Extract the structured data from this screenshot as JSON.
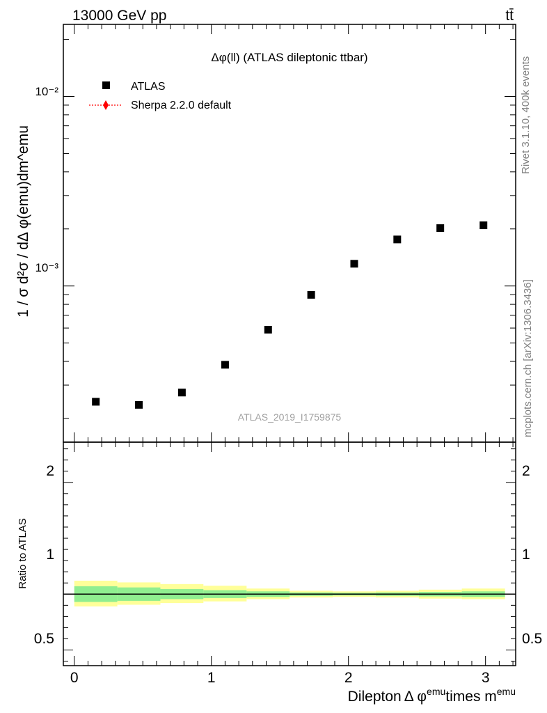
{
  "header": {
    "left": "13000 GeV pp",
    "right": "tt̄"
  },
  "side_labels": {
    "rivet": "Rivet 3.1.10,  400k events",
    "mcplots": "mcplots.cern.ch [arXiv:1306.3436]"
  },
  "chart_data": [
    {
      "type": "scatter",
      "title": "Δφ(ll) (ATLAS dileptonic ttbar)",
      "ylabel": "1 / σ  d²σ / dΔ φ(emu)dm^emu",
      "yscale": "log",
      "ylim": [
        0.00015,
        0.024
      ],
      "xlim": [
        -0.08,
        3.22
      ],
      "y_ticks": [
        "10⁻³",
        "10⁻²"
      ],
      "watermark": "ATLAS_2019_I1759875",
      "legend_position": "top-left",
      "series": [
        {
          "name": "ATLAS",
          "marker": "square",
          "color": "#000000",
          "x": [
            0.157,
            0.471,
            0.785,
            1.1,
            1.414,
            1.728,
            2.042,
            2.356,
            2.67,
            2.985
          ],
          "values": [
            0.000245,
            0.000236,
            0.000274,
            0.000384,
            0.000588,
            0.000898,
            0.00131,
            0.00176,
            0.00202,
            0.00209
          ],
          "legend": "ATLAS"
        },
        {
          "name": "Sherpa 2.2.0 default",
          "marker": "diamond",
          "line": "dotted",
          "color": "#ff0000",
          "legend": "Sherpa 2.2.0 default",
          "x": [],
          "values": []
        }
      ]
    },
    {
      "type": "area",
      "ylabel": "Ratio to ATLAS",
      "xlabel_main": "Dilepton",
      "xlabel_phi": "Δ φ",
      "xlabel_emu": "emu",
      "xlabel_times": "times m",
      "ylim": [
        0.36,
        2.36
      ],
      "x_ticks": [
        "0",
        "1",
        "2",
        "3"
      ],
      "y_ticks_left": [
        "0.5",
        "1",
        "2"
      ],
      "y_ticks_right": [
        "0.5",
        "1",
        "2"
      ],
      "reference_line": 1,
      "bins": [
        0,
        0.314,
        0.628,
        0.942,
        1.257,
        1.571,
        1.885,
        2.199,
        2.513,
        2.827,
        3.142
      ],
      "band_inner": [
        [
          0.93,
          1.07
        ],
        [
          0.94,
          1.06
        ],
        [
          0.955,
          1.045
        ],
        [
          0.965,
          1.035
        ],
        [
          0.975,
          1.025
        ],
        [
          0.985,
          1.015
        ],
        [
          0.988,
          1.012
        ],
        [
          0.985,
          1.015
        ],
        [
          0.98,
          1.02
        ],
        [
          0.975,
          1.025
        ]
      ],
      "band_outer": [
        [
          0.89,
          1.12
        ],
        [
          0.905,
          1.105
        ],
        [
          0.92,
          1.09
        ],
        [
          0.935,
          1.075
        ],
        [
          0.955,
          1.05
        ],
        [
          0.97,
          1.03
        ],
        [
          0.975,
          1.025
        ],
        [
          0.97,
          1.03
        ],
        [
          0.96,
          1.04
        ],
        [
          0.955,
          1.05
        ]
      ],
      "colors": {
        "inner": "#90ee90",
        "outer": "#ffff99"
      }
    }
  ]
}
